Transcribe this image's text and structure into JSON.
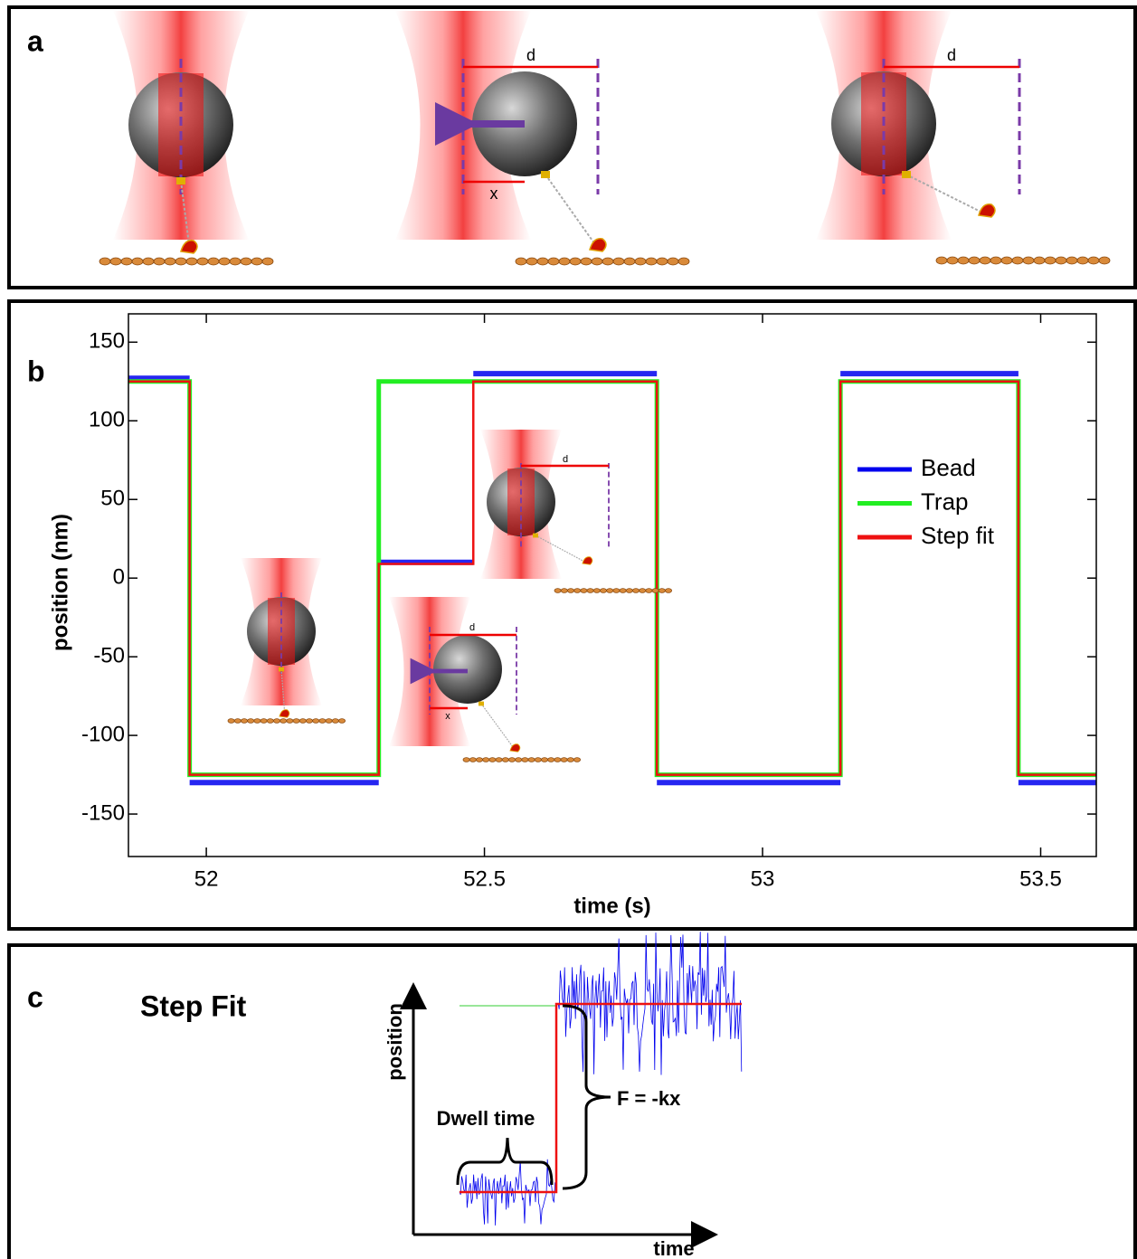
{
  "panel_a": {
    "label": "a",
    "distance_labels": [
      "d",
      "d"
    ],
    "displacement_label": "x"
  },
  "chart_data": {
    "type": "line",
    "panel_label": "b",
    "x_axis_label": "time (s)",
    "y_axis_label": "position (nm)",
    "xlim": [
      51.86,
      53.6
    ],
    "ylim": [
      -177,
      168
    ],
    "xticks": [
      52,
      52.5,
      53,
      53.5
    ],
    "yticks": [
      150,
      100,
      50,
      0,
      -50,
      -100,
      -150
    ],
    "legend_position": "right",
    "series": [
      {
        "name": "Bead",
        "color": "#0000ee",
        "x": [
          51.86,
          51.97,
          51.97,
          51.97,
          52.31,
          52.31,
          52.31,
          52.48,
          52.48,
          52.48,
          52.81,
          52.81,
          52.81,
          53.14,
          53.14,
          53.14,
          53.46,
          53.46,
          53.46,
          53.6
        ],
        "values": [
          127,
          127,
          null,
          -130,
          -130,
          null,
          10,
          10,
          null,
          130,
          130,
          null,
          -130,
          -130,
          null,
          130,
          130,
          null,
          -130,
          -130
        ]
      },
      {
        "name": "Trap",
        "color": "#22ee22",
        "x": [
          51.86,
          51.97,
          51.97,
          52.31,
          52.31,
          52.81,
          52.81,
          53.14,
          53.14,
          53.46,
          53.46,
          53.6
        ],
        "values": [
          125,
          125,
          -125,
          -125,
          125,
          125,
          -125,
          -125,
          125,
          125,
          -125,
          -125
        ]
      },
      {
        "name": "Step fit",
        "color": "#ee1111",
        "x": [
          51.86,
          51.97,
          51.97,
          52.31,
          52.31,
          52.48,
          52.48,
          52.81,
          52.81,
          53.14,
          53.14,
          53.46,
          53.46,
          53.6
        ],
        "values": [
          125,
          125,
          -125,
          -125,
          9,
          9,
          125,
          125,
          -125,
          -125,
          125,
          125,
          -125,
          -125
        ]
      }
    ]
  },
  "panel_b_insets": {
    "distance_labels": [
      "d",
      "d"
    ],
    "displacement_label": "x"
  },
  "panel_c": {
    "label": "c",
    "title": "Step Fit",
    "y_axis_label": "position",
    "x_axis_label": "time",
    "annotations": [
      "Dwell time",
      "F = -kx"
    ]
  }
}
